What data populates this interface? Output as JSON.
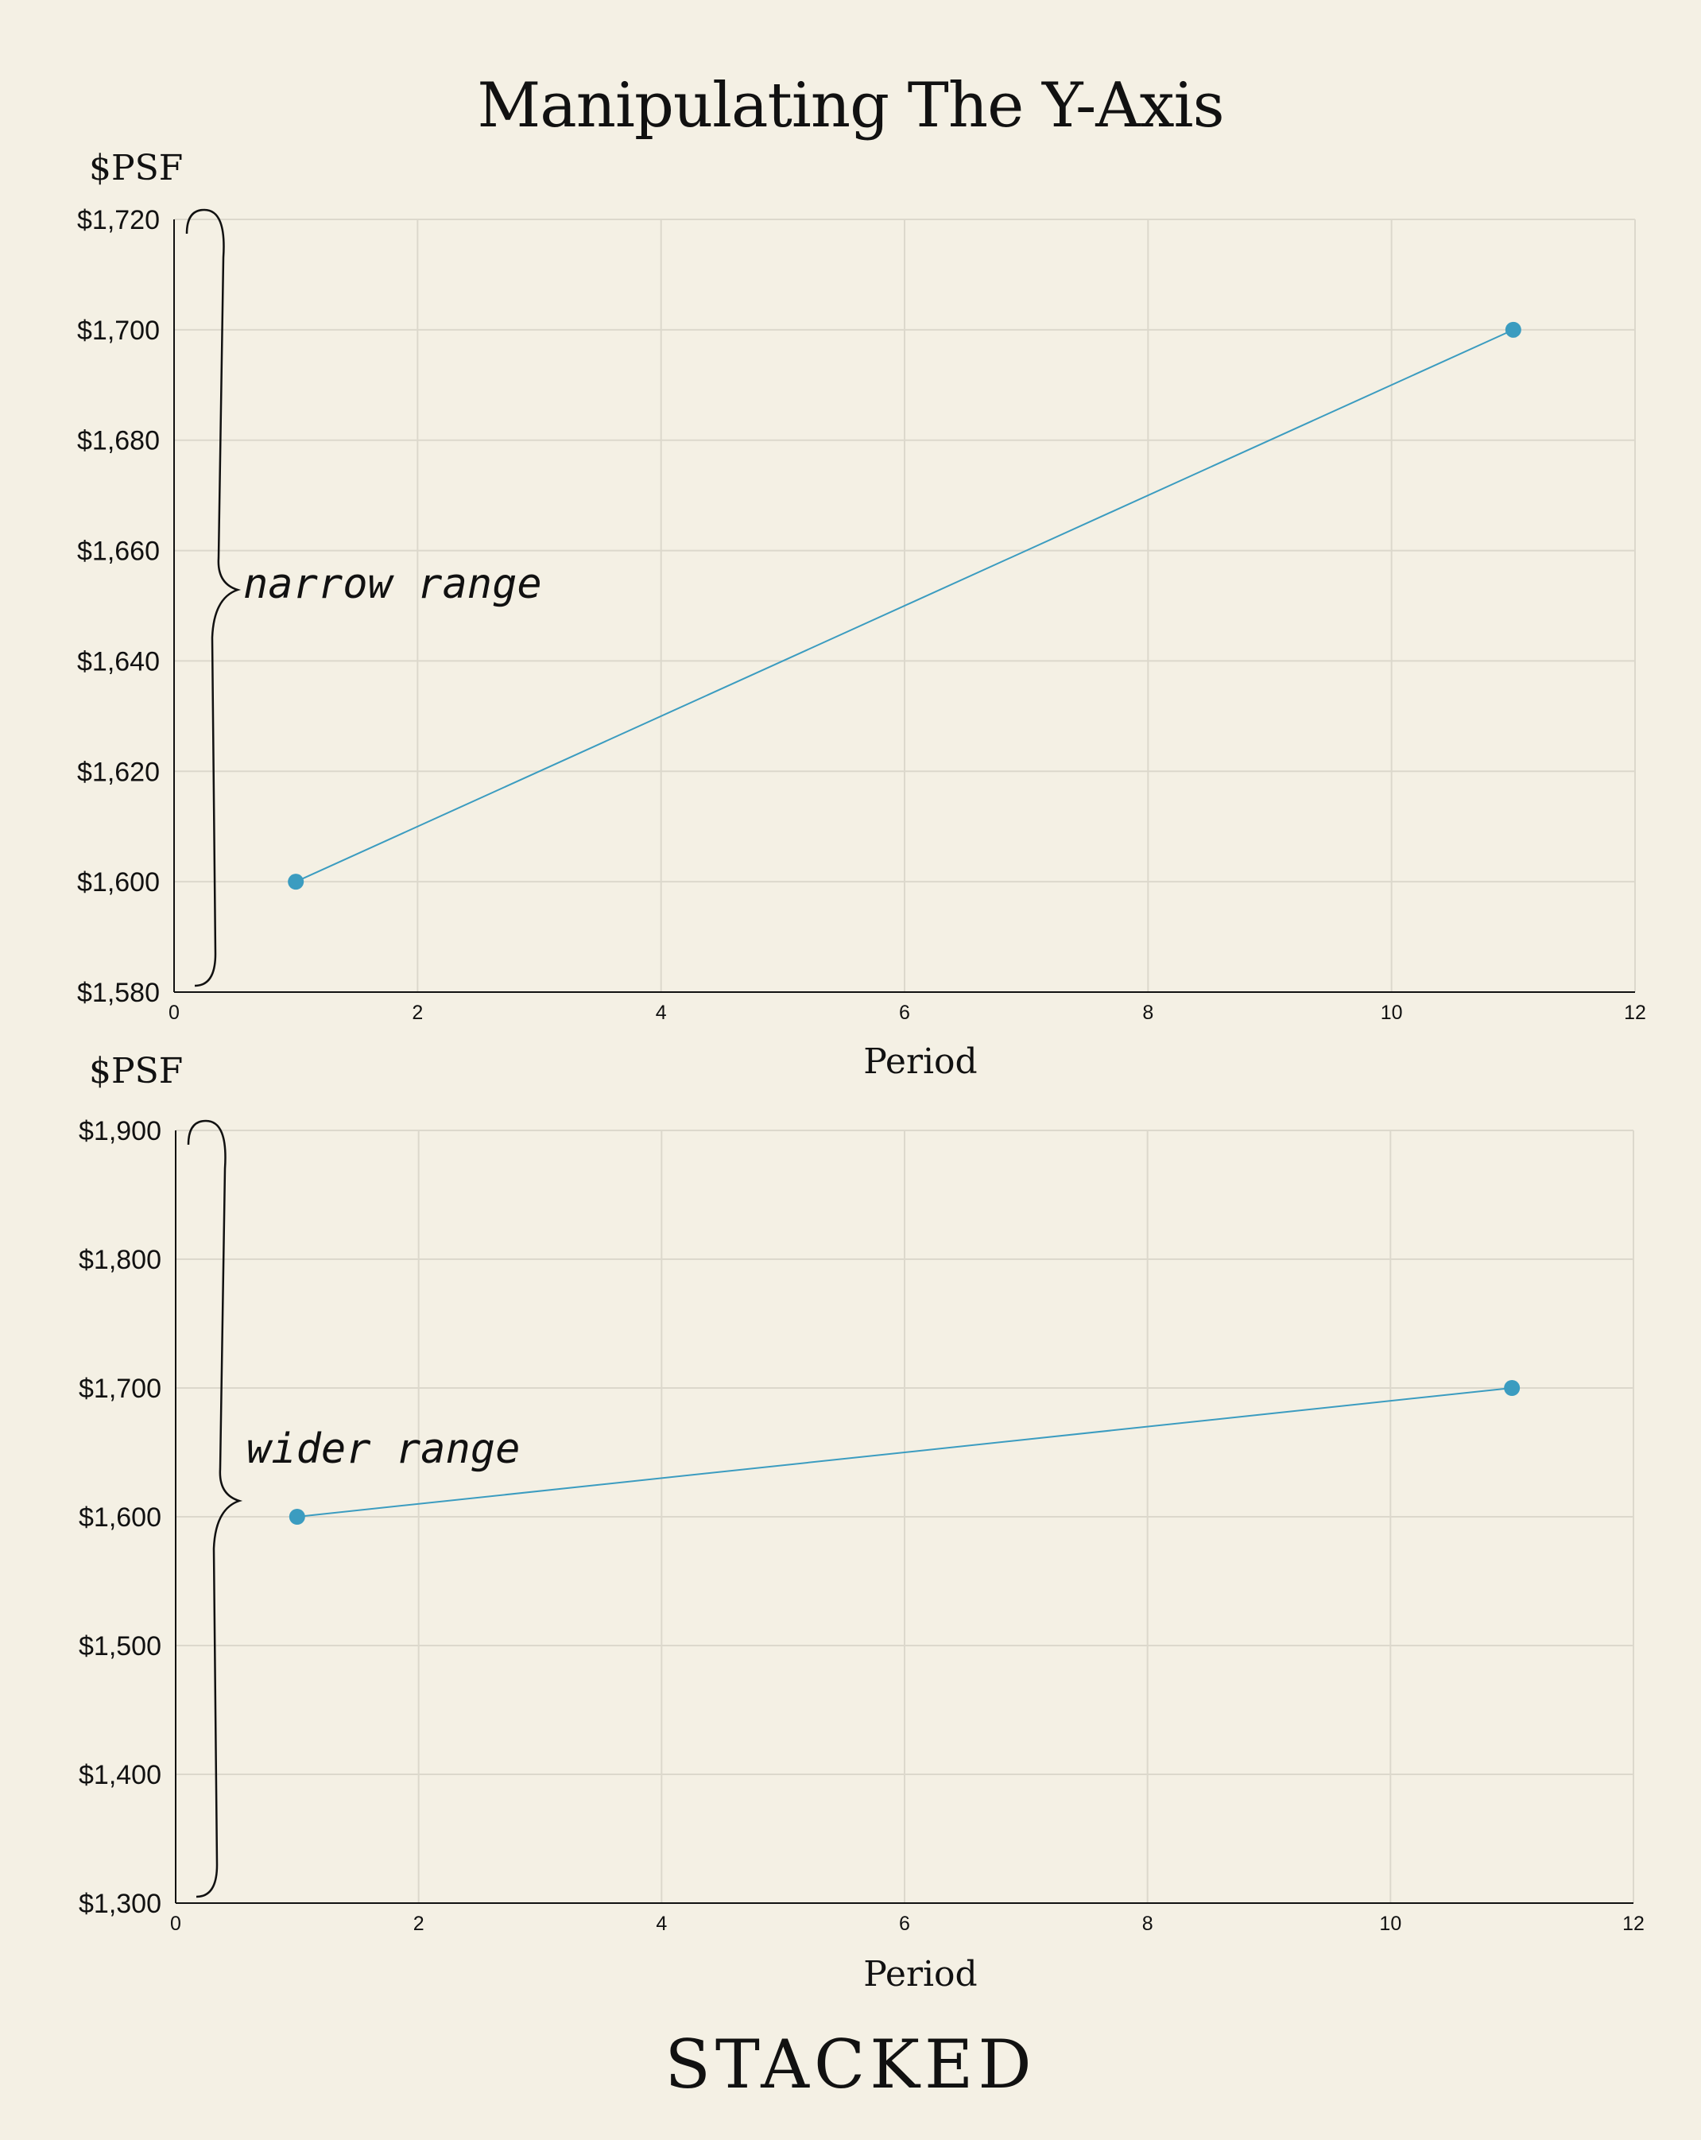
{
  "page": {
    "title": "Manipulating The Y-Axis",
    "brand": "STACKED"
  },
  "colors": {
    "background": "#f4f0e4",
    "series": "#3b9cc0",
    "grid": "#dcd8cc",
    "axis": "#111111"
  },
  "chart_data": [
    {
      "type": "line",
      "ylabel": "$PSF",
      "xlabel": "Period",
      "ylim": [
        1580,
        1720
      ],
      "xlim": [
        0,
        12
      ],
      "yticks": [
        1580,
        1600,
        1620,
        1640,
        1660,
        1680,
        1700,
        1720
      ],
      "ytick_labels": [
        "$1,580",
        "$1,600",
        "$1,620",
        "$1,640",
        "$1,660",
        "$1,680",
        "$1,700",
        "$1,720"
      ],
      "xticks": [
        0,
        2,
        4,
        6,
        8,
        10,
        12
      ],
      "xtick_labels": [
        "0",
        "2",
        "4",
        "6",
        "8",
        "10",
        "12"
      ],
      "grid": true,
      "series": [
        {
          "x": [
            1,
            11
          ],
          "values": [
            1600,
            1700
          ]
        }
      ],
      "annotation": "narrow range"
    },
    {
      "type": "line",
      "ylabel": "$PSF",
      "xlabel": "Period",
      "ylim": [
        1300,
        1900
      ],
      "xlim": [
        0,
        12
      ],
      "yticks": [
        1300,
        1400,
        1500,
        1600,
        1700,
        1800,
        1900
      ],
      "ytick_labels": [
        "$1,300",
        "$1,400",
        "$1,500",
        "$1,600",
        "$1,700",
        "$1,800",
        "$1,900"
      ],
      "xticks": [
        0,
        2,
        4,
        6,
        8,
        10,
        12
      ],
      "xtick_labels": [
        "0",
        "2",
        "4",
        "6",
        "8",
        "10",
        "12"
      ],
      "grid": true,
      "series": [
        {
          "x": [
            1,
            11
          ],
          "values": [
            1600,
            1700
          ]
        }
      ],
      "annotation": "wider range"
    }
  ]
}
